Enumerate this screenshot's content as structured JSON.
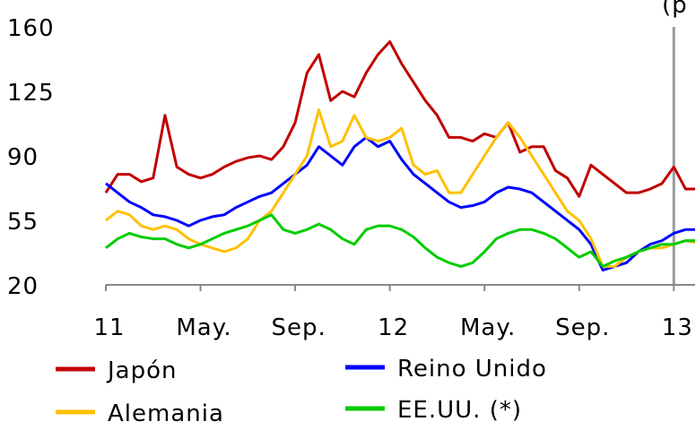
{
  "chart_data": {
    "type": "line",
    "annotation": "(p",
    "x": [
      0,
      0.5,
      1,
      1.5,
      2,
      2.5,
      3,
      3.5,
      4,
      4.5,
      5,
      5.5,
      6,
      6.5,
      7,
      7.5,
      8,
      8.5,
      9,
      9.5,
      10,
      10.5,
      11,
      11.5,
      12,
      12.5,
      13,
      13.5,
      14,
      14.5,
      15,
      15.5,
      16,
      16.5,
      17,
      17.5,
      18,
      18.5,
      19,
      19.5,
      20,
      20.5,
      21,
      21.5,
      22,
      22.5,
      23,
      23.5,
      24,
      24.5,
      24.9
    ],
    "series": [
      {
        "name": "Japón",
        "color": "#c00000",
        "values": [
          70,
          80,
          80,
          76,
          78,
          112,
          84,
          80,
          78,
          80,
          84,
          87,
          89,
          90,
          88,
          95,
          108,
          135,
          145,
          120,
          125,
          122,
          135,
          145,
          152,
          140,
          130,
          120,
          112,
          100,
          100,
          98,
          102,
          100,
          108,
          92,
          95,
          95,
          82,
          78,
          68,
          85,
          80,
          75,
          70,
          70,
          72,
          75,
          84,
          72,
          72
        ]
      },
      {
        "name": "Reino Unido",
        "color": "#0000ff",
        "values": [
          75,
          70,
          65,
          62,
          58,
          57,
          55,
          52,
          55,
          57,
          58,
          62,
          65,
          68,
          70,
          75,
          80,
          85,
          95,
          90,
          85,
          95,
          100,
          95,
          98,
          88,
          80,
          75,
          70,
          65,
          62,
          63,
          65,
          70,
          73,
          72,
          70,
          65,
          60,
          55,
          50,
          42,
          28,
          30,
          32,
          38,
          42,
          44,
          48,
          50,
          50
        ]
      },
      {
        "name": "Alemania",
        "color": "#ffc000",
        "values": [
          55,
          60,
          58,
          52,
          50,
          52,
          50,
          45,
          42,
          40,
          38,
          40,
          45,
          55,
          60,
          70,
          80,
          90,
          115,
          95,
          98,
          112,
          100,
          98,
          100,
          105,
          85,
          80,
          82,
          70,
          70,
          80,
          90,
          100,
          108,
          100,
          90,
          80,
          70,
          60,
          55,
          45,
          30,
          30,
          35,
          38,
          40,
          40,
          42,
          44,
          43
        ]
      },
      {
        "name": "EE.UU. (*)",
        "color": "#00cc00",
        "values": [
          40,
          45,
          48,
          46,
          45,
          45,
          42,
          40,
          42,
          45,
          48,
          50,
          52,
          55,
          58,
          50,
          48,
          50,
          53,
          50,
          45,
          42,
          50,
          52,
          52,
          50,
          46,
          40,
          35,
          32,
          30,
          32,
          38,
          45,
          48,
          50,
          50,
          48,
          45,
          40,
          35,
          38,
          30,
          33,
          35,
          38,
          40,
          42,
          42,
          44,
          44
        ]
      }
    ],
    "xlim": [
      0,
      24.9
    ],
    "xticks": [
      {
        "value": 0,
        "label": "11"
      },
      {
        "value": 4,
        "label": "May."
      },
      {
        "value": 8,
        "label": "Sep."
      },
      {
        "value": 12,
        "label": "12"
      },
      {
        "value": 16,
        "label": "May."
      },
      {
        "value": 20,
        "label": "Sep."
      },
      {
        "value": 24,
        "label": "13"
      }
    ],
    "ylim": [
      20,
      160
    ],
    "yticks": [
      20,
      55,
      90,
      125,
      160
    ],
    "marker_x": 24,
    "grid": false
  }
}
